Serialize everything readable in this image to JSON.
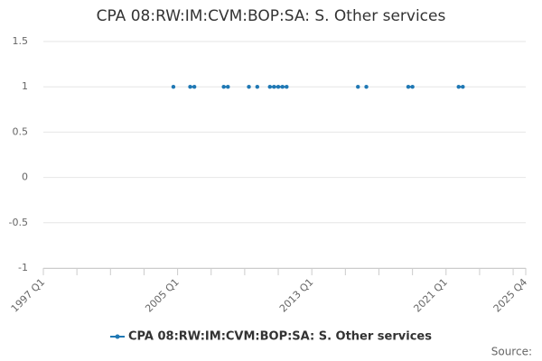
{
  "chart_data": {
    "type": "line",
    "title": "CPA 08:RW:IM:CVM:BOP:SA: S. Other services",
    "categories": [
      "1997 Q1",
      null,
      null,
      null,
      null,
      null,
      null,
      null,
      null,
      null,
      null,
      null,
      null,
      null,
      null,
      null,
      null,
      null,
      null,
      null,
      null,
      null,
      null,
      null,
      null,
      null,
      null,
      null,
      null,
      null,
      null,
      null,
      "2005 Q1",
      null,
      null,
      null,
      null,
      null,
      null,
      null,
      null,
      null,
      null,
      null,
      null,
      null,
      null,
      null,
      null,
      null,
      null,
      null,
      null,
      null,
      null,
      null,
      null,
      null,
      null,
      null,
      null,
      null,
      null,
      null,
      "2013 Q1",
      null,
      null,
      null,
      null,
      null,
      null,
      null,
      null,
      null,
      null,
      null,
      null,
      null,
      null,
      null,
      null,
      null,
      null,
      null,
      null,
      null,
      null,
      null,
      null,
      null,
      null,
      null,
      null,
      null,
      null,
      null,
      "2021 Q1",
      null,
      null,
      null,
      null,
      null,
      null,
      null,
      null,
      null,
      null,
      null,
      null,
      null,
      null,
      null,
      null,
      null,
      null,
      "2025 Q4"
    ],
    "series": [
      {
        "name": "CPA 08:RW:IM:CVM:BOP:SA: S. Other services",
        "color": "#1f78b4",
        "values": [
          null,
          null,
          null,
          null,
          null,
          null,
          null,
          null,
          null,
          null,
          null,
          null,
          null,
          null,
          null,
          null,
          null,
          null,
          null,
          null,
          null,
          null,
          null,
          null,
          null,
          null,
          null,
          null,
          null,
          null,
          null,
          1,
          null,
          null,
          null,
          1,
          1,
          null,
          null,
          null,
          null,
          null,
          null,
          1,
          1,
          null,
          null,
          null,
          null,
          1,
          null,
          1,
          null,
          null,
          1,
          1,
          1,
          1,
          1,
          null,
          null,
          null,
          null,
          null,
          null,
          null,
          null,
          null,
          null,
          null,
          null,
          null,
          null,
          null,
          null,
          1,
          null,
          1,
          null,
          null,
          null,
          null,
          null,
          null,
          null,
          null,
          null,
          1,
          1,
          null,
          null,
          null,
          null,
          null,
          null,
          null,
          null,
          null,
          null,
          1,
          1,
          null,
          null,
          null,
          null,
          null,
          null,
          null,
          null,
          null,
          null,
          null,
          null,
          null,
          null,
          null
        ]
      }
    ],
    "ylim": [
      -1,
      1.5
    ],
    "yticks": [
      -1,
      -0.5,
      0,
      0.5,
      1,
      1.5
    ],
    "grid": true,
    "legend": "bottom",
    "source": "Source:"
  }
}
